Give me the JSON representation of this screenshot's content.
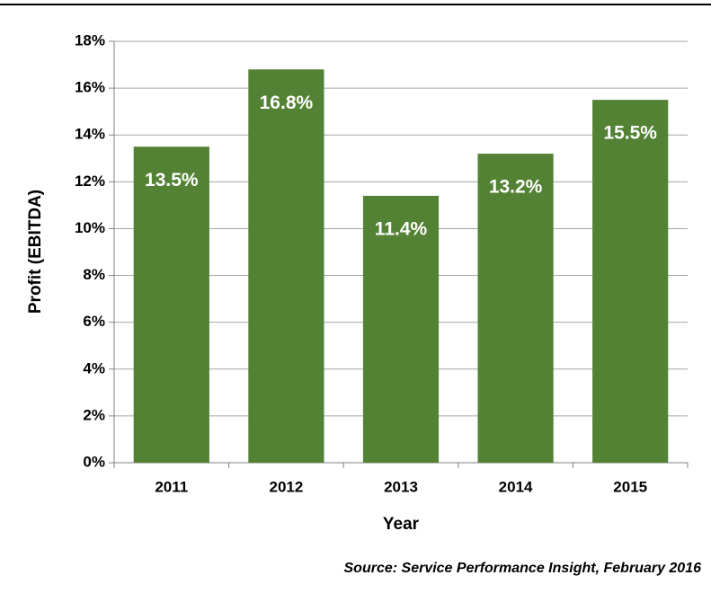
{
  "chart_data": {
    "type": "bar",
    "categories": [
      "2011",
      "2012",
      "2013",
      "2014",
      "2015"
    ],
    "values": [
      13.5,
      16.8,
      11.4,
      13.2,
      15.5
    ],
    "value_labels": [
      "13.5%",
      "16.8%",
      "11.4%",
      "13.2%",
      "15.5%"
    ],
    "color": "#548235",
    "ylim": [
      0,
      18
    ],
    "yticks": [
      {
        "value": 0,
        "label": "0%"
      },
      {
        "value": 2,
        "label": "2%"
      },
      {
        "value": 4,
        "label": "4%"
      },
      {
        "value": 6,
        "label": "6%"
      },
      {
        "value": 8,
        "label": "8%"
      },
      {
        "value": 10,
        "label": "10%"
      },
      {
        "value": 12,
        "label": "12%"
      },
      {
        "value": 14,
        "label": "14%"
      },
      {
        "value": 16,
        "label": "16%"
      },
      {
        "value": 18,
        "label": "18%"
      }
    ],
    "grid": true,
    "x_label": "Year",
    "y_label": "Profit (EBITDA)",
    "source": "Source: Service Performance Insight, February 2016"
  }
}
